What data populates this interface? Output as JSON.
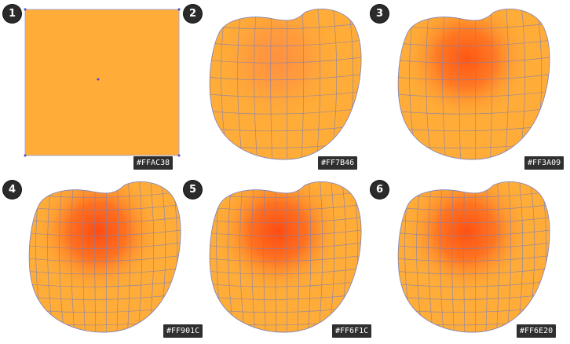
{
  "steps": [
    {
      "number": "1",
      "color_label": "#FFAC38",
      "base": "#FFAC38",
      "shape": "square"
    },
    {
      "number": "2",
      "color_label": "#FF7B46",
      "base": "#FFAC38",
      "highlight": "#FF7B46",
      "intensity": 0.55,
      "shape": "blob"
    },
    {
      "number": "3",
      "color_label": "#FF3A09",
      "base": "#FFAC38",
      "highlight": "#FF3A09",
      "intensity": 0.75,
      "shape": "blob"
    },
    {
      "number": "4",
      "color_label": "#FF901C",
      "base": "#FFAC38",
      "highlight": "#FF3A09",
      "intensity": 0.85,
      "shape": "blob"
    },
    {
      "number": "5",
      "color_label": "#FF6F1C",
      "base": "#FFAC38",
      "highlight": "#FF3A09",
      "intensity": 0.85,
      "shape": "blob"
    },
    {
      "number": "6",
      "color_label": "#FF6E20",
      "base": "#FFAC38",
      "highlight": "#FF3A09",
      "intensity": 0.8,
      "shape": "blob"
    }
  ],
  "mesh_line_color": "#7d7fb8"
}
